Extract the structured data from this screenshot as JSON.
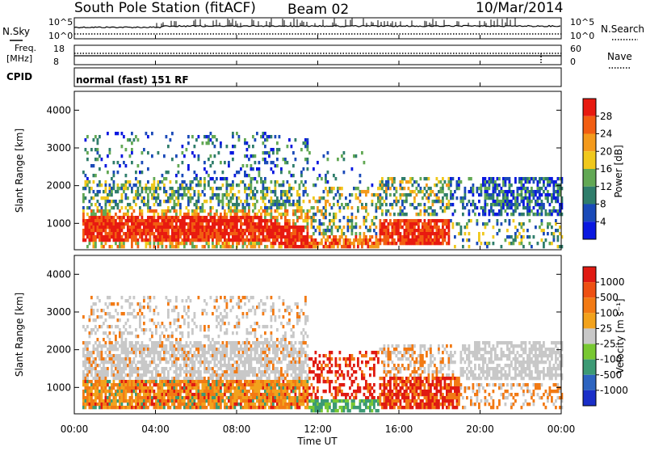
{
  "header": {
    "station": "South Pole Station (fitACF)",
    "beam": "Beam 02",
    "date": "10/Mar/2014"
  },
  "strip": {
    "nsky_label": "N.Sky",
    "nsearch_label": "N.Search",
    "nsky_ticks": [
      "10^5",
      "10^0"
    ],
    "freq_label_1": "Freq.",
    "freq_label_2": "[MHz]",
    "freq_ticks": [
      "18",
      "8"
    ],
    "nave_label": "Nave",
    "nave_ticks": [
      "60",
      "0"
    ],
    "cpid_label": "CPID",
    "cpid_value": "normal (fast) 151 RF"
  },
  "chart_data": [
    {
      "type": "heatmap",
      "name": "power",
      "ylabel": "Slant Range [km]",
      "yticks": [
        "1000",
        "2000",
        "3000",
        "4000"
      ],
      "ylim": [
        300,
        4500
      ],
      "colorbar": {
        "label": "Power [dB]",
        "ticks": [
          "4",
          "8",
          "12",
          "16",
          "20",
          "24",
          "28"
        ],
        "colors": [
          "#0a18e0",
          "#1a4ab8",
          "#2f7d6b",
          "#62a854",
          "#f0c81c",
          "#f49a1c",
          "#f25e12",
          "#e81a10"
        ]
      }
    },
    {
      "type": "heatmap",
      "name": "velocity",
      "ylabel": "Slant Range [km]",
      "yticks": [
        "1000",
        "2000",
        "3000",
        "4000"
      ],
      "ylim": [
        300,
        4500
      ],
      "xlabel": "Time UT",
      "xticks": [
        "00:00",
        "04:00",
        "08:00",
        "12:00",
        "16:00",
        "20:00",
        "00:00"
      ],
      "colorbar": {
        "label": "Velocity [m s⁻¹]",
        "ticks": [
          "1000",
          "500",
          "100",
          "25",
          "-25",
          "-100",
          "-500",
          "-1000"
        ],
        "colors": [
          "#1a2fc8",
          "#2d64c0",
          "#3c9a74",
          "#78c832",
          "#c8c8c8",
          "#f2a21c",
          "#f27a14",
          "#ee5012",
          "#e01a12"
        ]
      }
    }
  ],
  "colors": {
    "gray": "#c4c4c0",
    "red": "#e81a10",
    "orange": "#f57e14",
    "green": "#4f9a5a"
  }
}
